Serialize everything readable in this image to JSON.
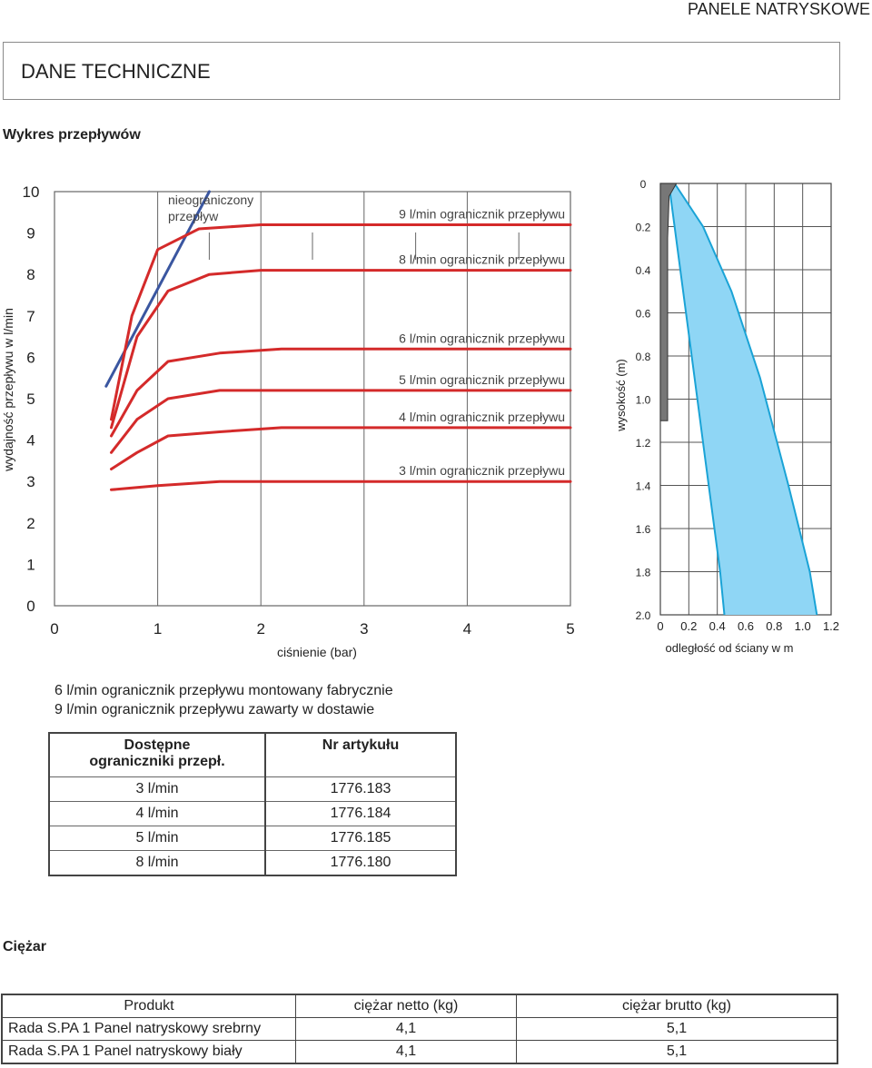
{
  "header": {
    "brand": "PANELE NATRYSKOWE"
  },
  "section": {
    "title": "DANE TECHNICZNE"
  },
  "flow_title": "Wykres przepływów",
  "chart_data": [
    {
      "type": "line",
      "xlabel": "ciśnienie (bar)",
      "ylabel": "wydajność przepływu w l/min",
      "xlim": [
        0,
        5
      ],
      "ylim": [
        0,
        10
      ],
      "x_ticks": [
        "0",
        "1",
        "2",
        "3",
        "4",
        "5"
      ],
      "y_ticks": [
        "0",
        "1",
        "2",
        "3",
        "4",
        "5",
        "6",
        "7",
        "8",
        "9",
        "10"
      ],
      "grid": true,
      "series": [
        {
          "name": "nieograniczony przepływ",
          "label_line1": "nieograniczony",
          "label_line2": "przepływ",
          "color": "#3a56a0",
          "points": [
            [
              0.5,
              5.3
            ],
            [
              1.5,
              10.0
            ]
          ]
        },
        {
          "name": "9 l/min ogranicznik przepływu",
          "color": "#d42a2a",
          "points": [
            [
              0.55,
              4.5
            ],
            [
              0.75,
              7.0
            ],
            [
              1.0,
              8.6
            ],
            [
              1.4,
              9.1
            ],
            [
              2.0,
              9.2
            ],
            [
              5.0,
              9.2
            ]
          ]
        },
        {
          "name": "8 l/min ogranicznik przepływu",
          "color": "#d42a2a",
          "points": [
            [
              0.55,
              4.3
            ],
            [
              0.8,
              6.5
            ],
            [
              1.1,
              7.6
            ],
            [
              1.5,
              8.0
            ],
            [
              2.0,
              8.1
            ],
            [
              5.0,
              8.1
            ]
          ]
        },
        {
          "name": "6 l/min ogranicznik przepływu",
          "color": "#d42a2a",
          "points": [
            [
              0.55,
              4.1
            ],
            [
              0.8,
              5.2
            ],
            [
              1.1,
              5.9
            ],
            [
              1.6,
              6.1
            ],
            [
              2.2,
              6.2
            ],
            [
              5.0,
              6.2
            ]
          ]
        },
        {
          "name": "5 l/min ogranicznik przepływu",
          "color": "#d42a2a",
          "points": [
            [
              0.55,
              3.7
            ],
            [
              0.8,
              4.5
            ],
            [
              1.1,
              5.0
            ],
            [
              1.6,
              5.2
            ],
            [
              2.2,
              5.2
            ],
            [
              5.0,
              5.2
            ]
          ]
        },
        {
          "name": "4 l/min ogranicznik przepływu",
          "color": "#d42a2a",
          "points": [
            [
              0.55,
              3.3
            ],
            [
              0.8,
              3.7
            ],
            [
              1.1,
              4.1
            ],
            [
              1.6,
              4.2
            ],
            [
              2.2,
              4.3
            ],
            [
              5.0,
              4.3
            ]
          ]
        },
        {
          "name": "3 l/min ogranicznik przepływu",
          "color": "#d42a2a",
          "points": [
            [
              0.55,
              2.8
            ],
            [
              1.0,
              2.9
            ],
            [
              1.6,
              3.0
            ],
            [
              2.2,
              3.0
            ],
            [
              5.0,
              3.0
            ]
          ]
        }
      ]
    },
    {
      "type": "area",
      "xlabel": "odległość od ściany w m",
      "ylabel": "wysokość  (m)",
      "xlim": [
        0,
        1.2
      ],
      "ylim": [
        0,
        2.0
      ],
      "y_inverted": true,
      "x_ticks": [
        "0",
        "0.2",
        "0.4",
        "0.6",
        "0.8",
        "1.0",
        "1.2"
      ],
      "y_ticks": [
        "0",
        "0.2",
        "0.4",
        "0.6",
        "0.8",
        "1.0",
        "1.2",
        "1.4",
        "1.6",
        "1.8",
        "2.0"
      ],
      "grid": true,
      "spray_color": "#8fd6f5",
      "spray_edge_color": "#1aa3d6",
      "panel_color": "#777777",
      "spray_inner_edge": [
        [
          0.06,
          0.0
        ],
        [
          0.12,
          0.3
        ],
        [
          0.22,
          0.8
        ],
        [
          0.32,
          1.3
        ],
        [
          0.42,
          1.8
        ],
        [
          0.45,
          2.0
        ]
      ],
      "spray_outer_edge": [
        [
          0.1,
          0.0
        ],
        [
          0.3,
          0.2
        ],
        [
          0.5,
          0.5
        ],
        [
          0.7,
          0.9
        ],
        [
          0.9,
          1.4
        ],
        [
          1.05,
          1.8
        ],
        [
          1.1,
          2.0
        ]
      ]
    }
  ],
  "notes": [
    "6 l/min ogranicznik przepływu montowany fabrycznie",
    "9 l/min ogranicznik przepływu zawarty w dostawie"
  ],
  "restrictors": {
    "header_col1_line1": "Dostępne",
    "header_col1_line2": "ograniczniki przepł.",
    "header_col2": "Nr artykułu",
    "rows": [
      {
        "flow": "3 l/min",
        "article": "1776.183"
      },
      {
        "flow": "4 l/min",
        "article": "1776.184"
      },
      {
        "flow": "5 l/min",
        "article": "1776.185"
      },
      {
        "flow": "8 l/min",
        "article": "1776.180"
      }
    ]
  },
  "weight": {
    "title": "Ciężar",
    "headers": [
      "Produkt",
      "ciężar netto (kg)",
      "ciężar brutto (kg)"
    ],
    "rows": [
      [
        "Rada S.PA 1 Panel natryskowy srebrny",
        "4,1",
        "5,1"
      ],
      [
        "Rada S.PA 1 Panel natryskowy biały",
        "4,1",
        "5,1"
      ]
    ]
  }
}
